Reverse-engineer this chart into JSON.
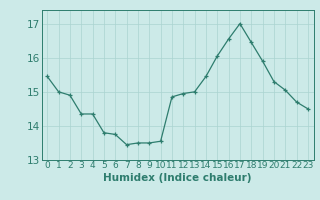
{
  "x": [
    0,
    1,
    2,
    3,
    4,
    5,
    6,
    7,
    8,
    9,
    10,
    11,
    12,
    13,
    14,
    15,
    16,
    17,
    18,
    19,
    20,
    21,
    22,
    23
  ],
  "y": [
    15.45,
    15.0,
    14.9,
    14.35,
    14.35,
    13.8,
    13.75,
    13.45,
    13.5,
    13.5,
    13.55,
    14.85,
    14.95,
    15.0,
    15.45,
    16.05,
    16.55,
    17.0,
    16.45,
    15.9,
    15.3,
    15.05,
    14.7,
    14.5
  ],
  "line_color": "#2e7d6e",
  "marker_color": "#2e7d6e",
  "bg_color": "#cceae8",
  "grid_color": "#aad4d0",
  "text_color": "#2e7d6e",
  "xlabel": "Humidex (Indice chaleur)",
  "ylim": [
    13.0,
    17.4
  ],
  "yticks": [
    13,
    14,
    15,
    16,
    17
  ],
  "xticks": [
    0,
    1,
    2,
    3,
    4,
    5,
    6,
    7,
    8,
    9,
    10,
    11,
    12,
    13,
    14,
    15,
    16,
    17,
    18,
    19,
    20,
    21,
    22,
    23
  ],
  "font_size": 6.5,
  "xlabel_font_size": 7.5,
  "ylabel_font_size": 7.5
}
